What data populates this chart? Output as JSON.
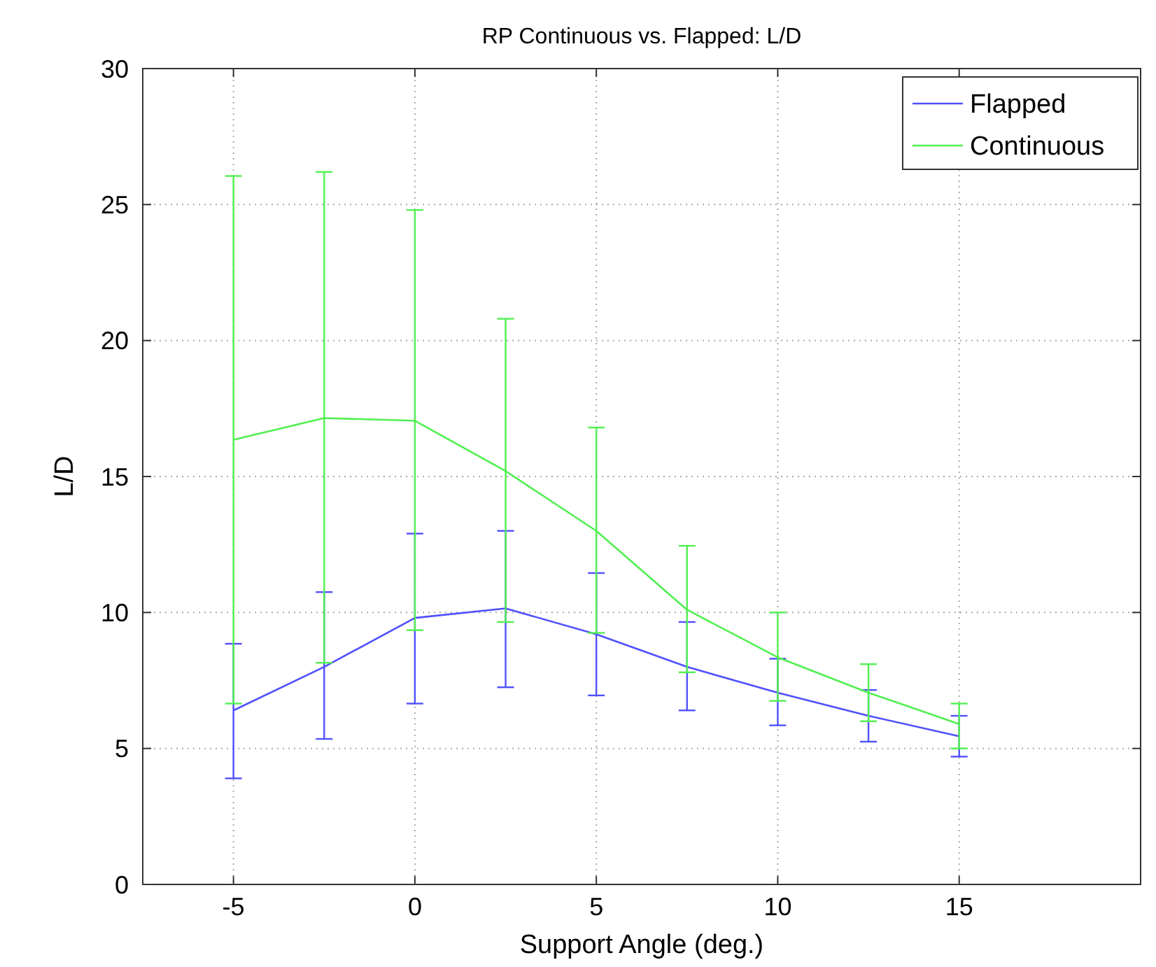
{
  "chart_data": {
    "type": "line",
    "title": "RP Continuous vs. Flapped: L/D",
    "xlabel": "Support Angle (deg.)",
    "ylabel": "L/D",
    "x": [
      -5,
      -2.5,
      0,
      2.5,
      5,
      7.5,
      10,
      12.5,
      15
    ],
    "xlim": [
      -7.5,
      20
    ],
    "xticks": [
      -5,
      0,
      5,
      10,
      15
    ],
    "ylim": [
      0,
      30
    ],
    "yticks": [
      0,
      5,
      10,
      15,
      20,
      25,
      30
    ],
    "grid": true,
    "legend": "top right",
    "line_style": "solid",
    "marker": "none",
    "series": [
      {
        "name": "Flapped",
        "color": "#5050ff",
        "values": [
          6.4,
          8.0,
          9.8,
          10.15,
          9.2,
          8.0,
          7.05,
          6.2,
          5.45
        ],
        "errors": [
          [
            3.9,
            8.85
          ],
          [
            5.35,
            10.75
          ],
          [
            6.65,
            12.9
          ],
          [
            7.25,
            13.0
          ],
          [
            6.95,
            11.45
          ],
          [
            6.4,
            9.65
          ],
          [
            5.85,
            8.3
          ],
          [
            5.25,
            7.15
          ],
          [
            4.7,
            6.2
          ]
        ]
      },
      {
        "name": "Continuous",
        "color": "#50f050",
        "values": [
          16.35,
          17.15,
          17.05,
          15.2,
          13.0,
          10.1,
          8.35,
          7.05,
          5.9
        ],
        "errors": [
          [
            6.65,
            26.05
          ],
          [
            8.15,
            26.2
          ],
          [
            9.35,
            24.8
          ],
          [
            9.65,
            20.8
          ],
          [
            9.25,
            16.8
          ],
          [
            7.8,
            12.45
          ],
          [
            6.75,
            10.0
          ],
          [
            6.0,
            8.1
          ],
          [
            5.0,
            6.65
          ]
        ]
      }
    ]
  }
}
